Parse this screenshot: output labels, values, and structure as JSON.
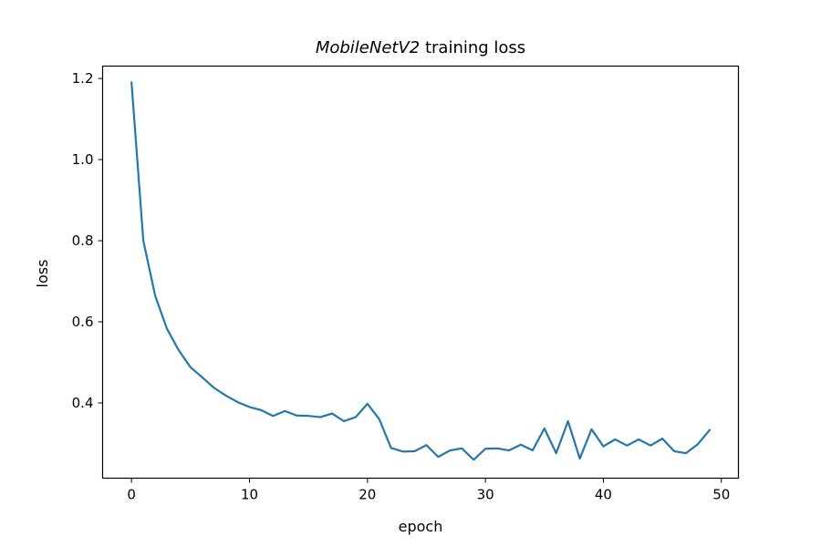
{
  "chart_data": {
    "type": "line",
    "title_italic": "MobileNetV2",
    "title_rest": " training loss",
    "xlabel": "epoch",
    "ylabel": "loss",
    "xlim": [
      -2.45,
      51.45
    ],
    "ylim": [
      0.2145,
      1.2305
    ],
    "xticks": [
      0,
      10,
      20,
      30,
      40,
      50
    ],
    "yticks": [
      0.4,
      0.6,
      0.8,
      1.0,
      1.2
    ],
    "ytick_labels": [
      "0.4",
      "0.6",
      "0.8",
      "1.0",
      "1.2"
    ],
    "grid": false,
    "series": [
      {
        "color": "#1f77b4",
        "x": [
          0,
          1,
          2,
          3,
          4,
          5,
          6,
          7,
          8,
          9,
          10,
          11,
          12,
          13,
          14,
          15,
          16,
          17,
          18,
          19,
          20,
          21,
          22,
          23,
          24,
          25,
          26,
          27,
          28,
          29,
          30,
          31,
          32,
          33,
          34,
          35,
          36,
          37,
          38,
          39,
          40,
          41,
          42,
          43,
          44,
          45,
          46,
          47,
          48,
          49
        ],
        "values": [
          1.19,
          0.8,
          0.665,
          0.583,
          0.53,
          0.488,
          0.463,
          0.437,
          0.418,
          0.402,
          0.39,
          0.382,
          0.368,
          0.38,
          0.369,
          0.368,
          0.365,
          0.374,
          0.355,
          0.365,
          0.398,
          0.36,
          0.289,
          0.28,
          0.281,
          0.296,
          0.267,
          0.283,
          0.288,
          0.26,
          0.287,
          0.288,
          0.283,
          0.297,
          0.283,
          0.337,
          0.276,
          0.355,
          0.263,
          0.335,
          0.293,
          0.31,
          0.295,
          0.31,
          0.295,
          0.312,
          0.281,
          0.276,
          0.298,
          0.333
        ]
      }
    ]
  }
}
